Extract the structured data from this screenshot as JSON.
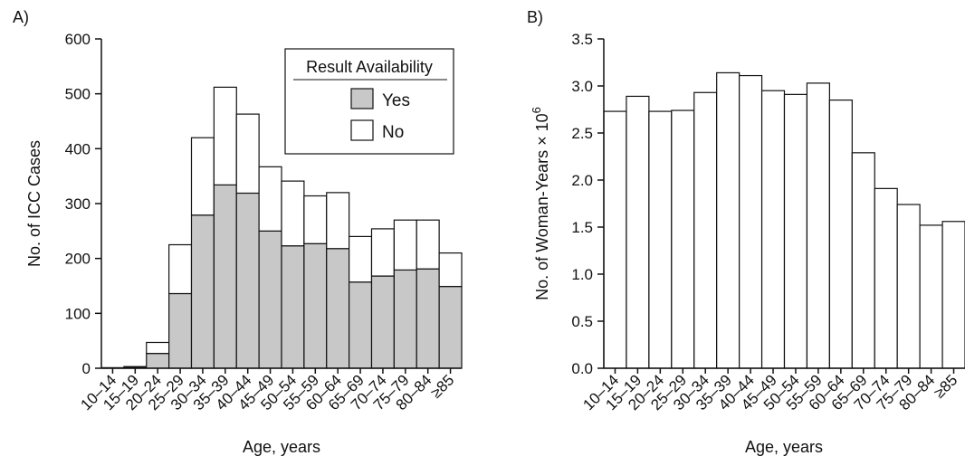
{
  "chart_data": [
    {
      "panel_label": "A)",
      "type": "bar",
      "stacked": true,
      "categories": [
        "10–14",
        "15–19",
        "20–24",
        "25–29",
        "30–34",
        "35–39",
        "40–44",
        "45–49",
        "50–54",
        "55–59",
        "60–64",
        "65–69",
        "70–74",
        "75–79",
        "80–84",
        "≥85"
      ],
      "series": [
        {
          "name": "Yes",
          "color": "#c8c8c8",
          "values": [
            1,
            1,
            27,
            136,
            279,
            334,
            319,
            250,
            223,
            227,
            218,
            157,
            168,
            179,
            181,
            149
          ]
        },
        {
          "name": "No",
          "color": "#ffffff",
          "values": [
            0,
            2,
            20,
            89,
            141,
            178,
            144,
            117,
            118,
            87,
            102,
            83,
            86,
            91,
            89,
            61
          ]
        }
      ],
      "xlabel": "Age, years",
      "ylabel": "No. of ICC Cases",
      "ylim": [
        0,
        600
      ],
      "yticks": [
        "0",
        "100",
        "200",
        "300",
        "400",
        "500",
        "600"
      ],
      "grid": false,
      "legend": {
        "title": "Result Availability",
        "placement": "top-right"
      }
    },
    {
      "panel_label": "B)",
      "type": "bar",
      "categories": [
        "10–14",
        "15–19",
        "20–24",
        "25–29",
        "30–34",
        "35–39",
        "40–44",
        "45–49",
        "50–54",
        "55–59",
        "60–64",
        "65–69",
        "70–74",
        "75–79",
        "80–84",
        "≥85"
      ],
      "values": [
        2.73,
        2.89,
        2.73,
        2.74,
        2.93,
        3.14,
        3.11,
        2.95,
        2.91,
        3.03,
        2.85,
        2.29,
        1.91,
        1.74,
        1.52,
        1.56
      ],
      "bar_color": "#ffffff",
      "xlabel": "Age, years",
      "ylabel": "No. of Woman-Years × 10",
      "ylabel_superscript": "6",
      "ylim": [
        0,
        3.5
      ],
      "yticks": [
        "0.0",
        "0.5",
        "1.0",
        "1.5",
        "2.0",
        "2.5",
        "3.0",
        "3.5"
      ],
      "grid": false
    }
  ]
}
